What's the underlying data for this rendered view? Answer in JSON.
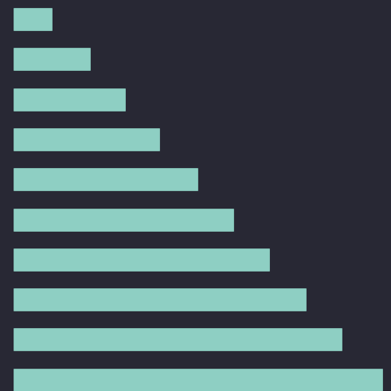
{
  "theme": {
    "background": "#282834",
    "bar_color": "#8ecfc3"
  },
  "icon": {
    "name": "bar-chart-icon",
    "bar_count": 10,
    "bar_fill_fractions": [
      0.106,
      0.21,
      0.303,
      0.396,
      0.5,
      0.598,
      0.693,
      0.794,
      0.89,
      1.0
    ]
  }
}
